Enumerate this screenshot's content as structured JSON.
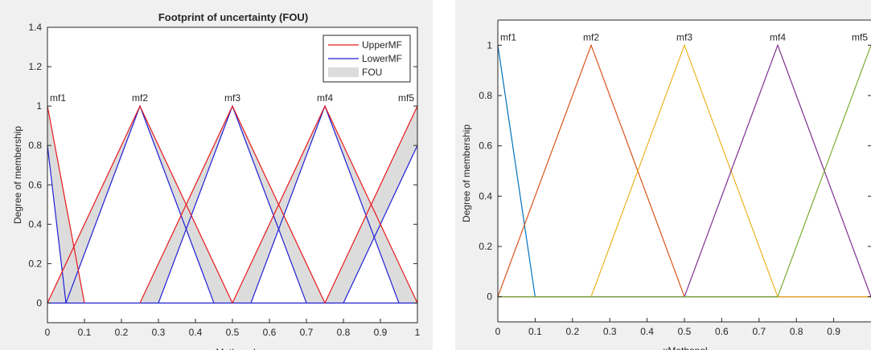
{
  "chart_data": [
    {
      "type": "line",
      "title": "Footprint of uncertainty (FOU)",
      "xlabel": "xMethanol",
      "ylabel": "Degree of membership",
      "xlim": [
        0,
        1
      ],
      "ylim": [
        -0.1,
        1.4
      ],
      "x_ticks": [
        "0",
        "0.1",
        "0.2",
        "0.3",
        "0.4",
        "0.5",
        "0.6",
        "0.7",
        "0.8",
        "0.9",
        "1"
      ],
      "y_ticks": [
        "0",
        "0.2",
        "0.4",
        "0.6",
        "0.8",
        "1",
        "1.2",
        "1.4"
      ],
      "grid": false,
      "legend": {
        "position": "top-right",
        "entries": [
          "UpperMF",
          "LowerMF",
          "FOU"
        ]
      },
      "colors": {
        "upper": "#e8191c",
        "lower": "#1f1fd6",
        "fou": "#dcdcdc"
      },
      "membership_functions": [
        {
          "name": "mf1",
          "label_x": 0,
          "upper": [
            [
              -0.25,
              0
            ],
            [
              0,
              1
            ],
            [
              0.1,
              0
            ]
          ],
          "lower": [
            [
              -0.2,
              0
            ],
            [
              0,
              0.8
            ],
            [
              0.05,
              0
            ]
          ]
        },
        {
          "name": "mf2",
          "label_x": 0.25,
          "upper": [
            [
              0,
              0
            ],
            [
              0.25,
              1
            ],
            [
              0.5,
              0
            ]
          ],
          "lower": [
            [
              0.05,
              0
            ],
            [
              0.25,
              1
            ],
            [
              0.45,
              0
            ]
          ]
        },
        {
          "name": "mf3",
          "label_x": 0.5,
          "upper": [
            [
              0.25,
              0
            ],
            [
              0.5,
              1
            ],
            [
              0.75,
              0
            ]
          ],
          "lower": [
            [
              0.3,
              0
            ],
            [
              0.5,
              1
            ],
            [
              0.7,
              0
            ]
          ]
        },
        {
          "name": "mf4",
          "label_x": 0.75,
          "upper": [
            [
              0.5,
              0
            ],
            [
              0.75,
              1
            ],
            [
              1.0,
              0
            ]
          ],
          "lower": [
            [
              0.55,
              0
            ],
            [
              0.75,
              1
            ],
            [
              0.95,
              0
            ]
          ]
        },
        {
          "name": "mf5",
          "label_x": 1.0,
          "upper": [
            [
              0.75,
              0
            ],
            [
              1.0,
              1
            ],
            [
              1.25,
              0
            ]
          ],
          "lower": [
            [
              0.8,
              0
            ],
            [
              1.0,
              0.8
            ],
            [
              1.2,
              0
            ]
          ]
        }
      ]
    },
    {
      "type": "line",
      "title": "",
      "xlabel": "xMethanol",
      "ylabel": "Degree of membership",
      "xlim": [
        0,
        1
      ],
      "ylim": [
        -0.1,
        1.1
      ],
      "x_ticks": [
        "0",
        "0.1",
        "0.2",
        "0.3",
        "0.4",
        "0.5",
        "0.6",
        "0.7",
        "0.8",
        "0.9"
      ],
      "y_ticks": [
        "0",
        "0.2",
        "0.4",
        "0.6",
        "0.8",
        "1"
      ],
      "grid": false,
      "series": [
        {
          "name": "mf1",
          "color": "#0072bd",
          "points": [
            [
              -0.1,
              0
            ],
            [
              0,
              1
            ],
            [
              0.1,
              0
            ]
          ]
        },
        {
          "name": "mf2",
          "color": "#d95319",
          "points": [
            [
              0,
              0
            ],
            [
              0.25,
              1
            ],
            [
              0.5,
              0
            ]
          ]
        },
        {
          "name": "mf3",
          "color": "#edb120",
          "points": [
            [
              0.25,
              0
            ],
            [
              0.5,
              1
            ],
            [
              0.75,
              0
            ]
          ]
        },
        {
          "name": "mf4",
          "color": "#7e2f8e",
          "points": [
            [
              0.5,
              0
            ],
            [
              0.75,
              1
            ],
            [
              1.0,
              0
            ]
          ]
        },
        {
          "name": "mf5",
          "color": "#77ac30",
          "points": [
            [
              0.75,
              0
            ],
            [
              1.0,
              1
            ],
            [
              1.25,
              0
            ]
          ]
        }
      ]
    }
  ]
}
